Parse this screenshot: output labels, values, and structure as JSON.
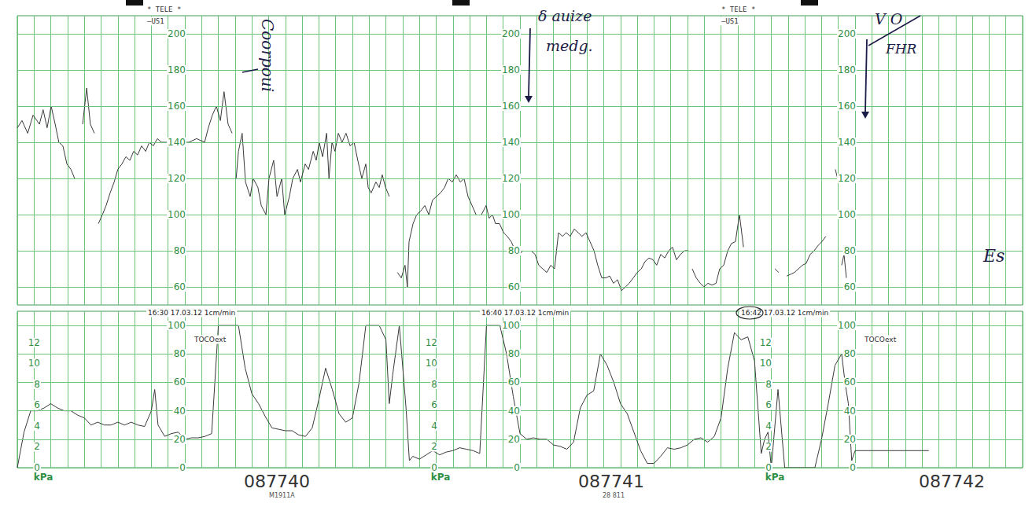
{
  "chart_data": [
    {
      "type": "line",
      "color": "#3a3a3a",
      "grid": true,
      "tick_labels": "y",
      "xlim": [
        0,
        30
      ],
      "xticks": [
        0,
        0.5,
        1,
        1.5,
        2,
        2.5,
        3,
        3.5,
        4,
        4.5,
        5,
        5.5,
        6,
        6.5,
        7,
        7.5,
        8,
        8.5,
        9,
        9.5,
        10,
        10.5,
        11,
        11.5,
        12,
        12.5,
        13,
        13.5,
        14,
        14.5,
        15,
        15.5,
        16,
        16.5,
        17,
        17.5,
        18,
        18.5,
        19,
        19.5,
        20,
        20.5,
        21,
        21.5,
        22,
        22.5,
        23,
        23.5,
        24,
        24.5,
        25,
        25.5,
        26,
        26.5,
        27,
        27.5,
        28,
        28.5,
        29,
        29.5,
        30
      ],
      "ylim": [
        50,
        210
      ],
      "yticks": [
        60,
        80,
        100,
        120,
        140,
        160,
        180,
        200
      ],
      "annotations": [
        "* TELE *",
        "—US1",
        "Coorpoui",
        "δ auize",
        "medg.",
        "V O",
        "FHR",
        "Es"
      ],
      "x": [
        0,
        0.14,
        0.31,
        0.47,
        0.66,
        0.77,
        0.89,
        1.01,
        1.13,
        1.24,
        1.36,
        1.48,
        1.6,
        1.71,
        1.77,
        1.95,
        2.07,
        2.18,
        2.3,
        2.36,
        2.42,
        2.54,
        2.65,
        2.77,
        2.89,
        3.0,
        3.12,
        3.24,
        3.36,
        3.47,
        3.59,
        3.71,
        3.83,
        3.94,
        4.06,
        4.18,
        4.3,
        4.41,
        4.65,
        4.88,
        5.12,
        5.35,
        5.59,
        5.7,
        5.82,
        5.94,
        6.06,
        6.17,
        6.29,
        6.41,
        6.47,
        6.53,
        6.6,
        6.71,
        6.81,
        6.95,
        7.04,
        7.18,
        7.28,
        7.42,
        7.51,
        7.65,
        7.75,
        7.89,
        7.98,
        8.12,
        8.22,
        8.36,
        8.45,
        8.59,
        8.69,
        8.83,
        8.92,
        9.01,
        9.11,
        9.23,
        9.3,
        9.39,
        9.48,
        9.58,
        9.69,
        9.81,
        9.93,
        10.05,
        10.16,
        10.28,
        10.4,
        10.47,
        10.56,
        10.7,
        10.8,
        10.89,
        10.99,
        11.1,
        11.2,
        11.34,
        11.46,
        11.57,
        11.64,
        11.69,
        11.81,
        11.92,
        12.04,
        12.16,
        12.28,
        12.39,
        12.51,
        12.63,
        12.75,
        12.86,
        12.98,
        13.1,
        13.22,
        13.33,
        13.45,
        13.57,
        13.69,
        13.77,
        13.85,
        13.99,
        14.08,
        14.18,
        14.27,
        14.39,
        14.51,
        14.62,
        14.74,
        14.86,
        14.98,
        15.09,
        15.2,
        15.33,
        15.45,
        15.56,
        15.68,
        15.8,
        15.92,
        16.03,
        16.15,
        16.27,
        16.38,
        16.5,
        16.62,
        16.74,
        16.85,
        16.97,
        17.09,
        17.21,
        17.32,
        17.44,
        17.56,
        17.68,
        17.79,
        17.91,
        18.03,
        18.15,
        18.26,
        18.38,
        18.5,
        18.62,
        18.73,
        18.85,
        18.97,
        19.08,
        19.2,
        19.32,
        19.44,
        19.55,
        19.67,
        19.79,
        19.91,
        20.02,
        20.08,
        20.14,
        20.26,
        20.38,
        20.49,
        20.61,
        20.73,
        20.85,
        20.96,
        21.08,
        21.2,
        21.31,
        21.43,
        21.55,
        21.67,
        22.1,
        22.61,
        22.72,
        22.84,
        22.96,
        23.08,
        23.19,
        23.31,
        23.43,
        23.54,
        23.66,
        23.78,
        23.9,
        24.01,
        24.13,
        24.27,
        24.41,
        24.48,
        24.54,
        24.6,
        24.67,
        24.74
      ],
      "values": [
        148,
        152,
        145,
        155,
        150,
        158,
        148,
        160,
        150,
        140,
        138,
        128,
        125,
        120,
        null,
        150,
        170,
        150,
        145,
        null,
        95,
        100,
        105,
        112,
        118,
        125,
        128,
        132,
        130,
        135,
        133,
        138,
        135,
        140,
        138,
        142,
        140,
        140,
        140,
        140,
        140,
        142,
        140,
        148,
        155,
        160,
        152,
        168,
        150,
        145,
        null,
        120,
        135,
        145,
        118,
        110,
        120,
        115,
        105,
        100,
        120,
        130,
        110,
        120,
        100,
        110,
        120,
        125,
        118,
        128,
        125,
        135,
        130,
        140,
        132,
        145,
        120,
        140,
        135,
        145,
        140,
        145,
        138,
        140,
        130,
        120,
        128,
        115,
        112,
        118,
        115,
        122,
        115,
        110,
        null,
        68,
        65,
        72,
        60,
        85,
        95,
        100,
        102,
        105,
        100,
        108,
        110,
        112,
        115,
        120,
        118,
        122,
        118,
        120,
        110,
        105,
        100,
        null,
        100,
        105,
        98,
        100,
        95,
        95,
        90,
        88,
        85,
        80,
        78,
        80,
        null,
        80,
        78,
        72,
        70,
        68,
        72,
        70,
        90,
        88,
        90,
        88,
        92,
        90,
        88,
        90,
        85,
        80,
        72,
        65,
        65,
        66,
        62,
        64,
        58,
        60,
        62,
        65,
        68,
        70,
        74,
        76,
        75,
        72,
        78,
        76,
        80,
        82,
        75,
        78,
        80,
        80,
        null,
        70,
        65,
        62,
        60,
        62,
        61,
        62,
        70,
        72,
        80,
        84,
        85,
        100,
        82,
        null,
        70,
        68,
        null,
        66,
        67,
        68,
        70,
        72,
        73,
        78,
        80,
        83,
        85,
        88,
        null,
        125,
        120,
        null,
        72,
        78,
        65
      ]
    },
    {
      "type": "line",
      "color": "#3a3a3a",
      "grid": true,
      "tick_labels": "y",
      "ylabel": "TOCOext",
      "y2label": "kPa",
      "xlim": [
        0,
        30
      ],
      "xticks": [
        0,
        0.5,
        1,
        1.5,
        2,
        2.5,
        3,
        3.5,
        4,
        4.5,
        5,
        5.5,
        6,
        6.5,
        7,
        7.5,
        8,
        8.5,
        9,
        9.5,
        10,
        10.5,
        11,
        11.5,
        12,
        12.5,
        13,
        13.5,
        14,
        14.5,
        15,
        15.5,
        16,
        16.5,
        17,
        17.5,
        18,
        18.5,
        19,
        19.5,
        20,
        20.5,
        21,
        21.5,
        22,
        22.5,
        23,
        23.5,
        24,
        24.5,
        25,
        25.5,
        26,
        26.5,
        27,
        27.5,
        28,
        28.5,
        29,
        29.5,
        30
      ],
      "ylim": [
        0,
        110
      ],
      "yticks": [
        0,
        20,
        40,
        60,
        80,
        100
      ],
      "y2lim": [
        0,
        15
      ],
      "y2ticks": [
        0,
        2,
        4,
        6,
        8,
        10,
        12
      ],
      "annotations": [
        "16:30 17.03.12 1cm/min",
        "16:40 17.03.12 1cm/min",
        "16:42 17.03.12 1cm/min",
        "087740",
        "087741",
        "087742",
        "M1911A",
        "28 811"
      ],
      "x": [
        0,
        0.2,
        0.4,
        0.6,
        0.8,
        1.0,
        1.2,
        1.4,
        1.6,
        1.8,
        2.0,
        2.2,
        2.4,
        2.6,
        2.8,
        3.0,
        3.2,
        3.4,
        3.6,
        3.8,
        4.0,
        4.1,
        4.2,
        4.4,
        4.6,
        4.8,
        5.0,
        5.2,
        5.4,
        5.6,
        5.8,
        6.0,
        6.2,
        6.4,
        6.6,
        6.8,
        7.0,
        7.2,
        7.4,
        7.6,
        7.8,
        8.0,
        8.2,
        8.4,
        8.6,
        8.8,
        9.0,
        9.2,
        9.4,
        9.6,
        9.8,
        10.0,
        10.2,
        10.4,
        10.6,
        10.8,
        11.0,
        11.1,
        11.2,
        11.4,
        11.6,
        11.7,
        11.8,
        12.0,
        12.2,
        12.4,
        12.6,
        12.8,
        13.0,
        13.2,
        13.4,
        13.6,
        13.8,
        14.0,
        14.2,
        14.4,
        14.6,
        14.8,
        15.0,
        15.2,
        15.4,
        15.6,
        15.8,
        16.0,
        16.2,
        16.4,
        16.6,
        16.8,
        17.0,
        17.2,
        17.4,
        17.6,
        17.8,
        18.0,
        18.2,
        18.4,
        18.6,
        18.8,
        19.0,
        19.2,
        19.4,
        19.6,
        19.8,
        20.0,
        20.2,
        20.4,
        20.6,
        20.8,
        21.0,
        21.2,
        21.4,
        21.6,
        21.8,
        22.0,
        22.2,
        22.3,
        22.4,
        22.5,
        22.7,
        22.9,
        23.0,
        23.4,
        23.8,
        24.0,
        24.2,
        24.4,
        24.6,
        24.7,
        24.8,
        24.9,
        25.0,
        26.0,
        27.0,
        27.2
      ],
      "values": [
        0,
        25,
        40,
        40,
        42,
        45,
        42,
        40,
        40,
        37,
        35,
        30,
        32,
        30,
        30,
        32,
        30,
        32,
        30,
        29,
        40,
        55,
        30,
        22,
        24,
        25,
        20,
        21,
        21,
        22,
        24,
        100,
        100,
        100,
        100,
        70,
        52,
        45,
        36,
        28,
        27,
        26,
        26,
        23,
        22,
        28,
        48,
        70,
        55,
        38,
        32,
        35,
        60,
        100,
        100,
        100,
        90,
        45,
        65,
        100,
        42,
        5,
        8,
        6,
        9,
        12,
        9,
        11,
        12,
        14,
        13,
        12,
        10,
        100,
        100,
        100,
        80,
        50,
        24,
        20,
        21,
        20,
        20,
        16,
        15,
        13,
        18,
        42,
        51,
        54,
        80,
        72,
        60,
        45,
        38,
        25,
        12,
        3,
        3,
        8,
        14,
        13,
        14,
        16,
        20,
        21,
        18,
        22,
        35,
        70,
        95,
        90,
        92,
        75,
        10,
        20,
        25,
        0,
        55,
        0,
        0,
        0,
        0,
        20,
        45,
        72,
        80,
        60,
        45,
        5,
        12,
        12,
        12,
        12
      ]
    }
  ]
}
